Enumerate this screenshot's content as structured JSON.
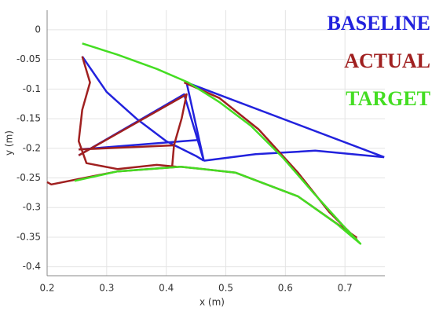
{
  "chart_data": {
    "type": "line",
    "xlabel": "x (m)",
    "ylabel": "y (m)",
    "xlim": [
      0.2,
      0.767
    ],
    "ylim": [
      -0.415,
      0.033
    ],
    "xticks": [
      0.2,
      0.3,
      0.4,
      0.5,
      0.6,
      0.7
    ],
    "yticks": [
      0,
      -0.05,
      -0.1,
      -0.15,
      -0.2,
      -0.25,
      -0.3,
      -0.35,
      -0.4
    ],
    "grid": true,
    "series": [
      {
        "name": "BASELINE",
        "color": "#2222dd",
        "x": [
          0.259,
          0.3,
          0.35,
          0.4,
          0.45,
          0.463,
          null,
          0.463,
          0.434,
          0.766,
          null,
          0.463,
          0.55,
          0.65,
          0.766,
          null,
          0.253,
          0.453,
          0.463,
          null,
          0.253,
          0.43,
          0.463
        ],
        "values": [
          -0.045,
          -0.105,
          -0.15,
          -0.188,
          -0.213,
          -0.221,
          null,
          -0.221,
          -0.089,
          -0.215,
          null,
          -0.221,
          -0.21,
          -0.204,
          -0.215,
          null,
          -0.202,
          -0.186,
          -0.221,
          null,
          -0.212,
          -0.109,
          -0.221
        ]
      },
      {
        "name": "ACTUAL",
        "color": "#a02020",
        "x": [
          0.259,
          0.272,
          0.259,
          0.253,
          0.266,
          0.318,
          0.384,
          0.417,
          null,
          0.253,
          0.434,
          0.426,
          0.413,
          0.41,
          null,
          0.253,
          0.413,
          null,
          0.43,
          0.489,
          0.555,
          0.621,
          0.674,
          0.72,
          null,
          0.2,
          0.207,
          0.318,
          0.424,
          0.516,
          0.621,
          0.72
        ],
        "values": [
          -0.045,
          -0.089,
          -0.135,
          -0.188,
          -0.225,
          -0.235,
          -0.228,
          -0.231,
          null,
          -0.212,
          -0.109,
          -0.149,
          -0.195,
          -0.229,
          null,
          -0.202,
          -0.195,
          null,
          -0.089,
          -0.115,
          -0.168,
          -0.241,
          -0.308,
          -0.354,
          null,
          -0.257,
          -0.261,
          -0.239,
          -0.231,
          -0.241,
          -0.281,
          -0.351
        ]
      },
      {
        "name": "TARGET",
        "color": "#44dd22",
        "x": [
          0.259,
          0.318,
          0.384,
          0.437,
          0.489,
          0.542,
          0.595,
          0.647,
          0.7,
          0.726,
          0.687,
          0.621,
          0.516,
          0.424,
          0.318,
          0.246
        ],
        "values": [
          -0.023,
          -0.042,
          -0.066,
          -0.089,
          -0.122,
          -0.162,
          -0.215,
          -0.275,
          -0.334,
          -0.361,
          -0.328,
          -0.281,
          -0.241,
          -0.231,
          -0.239,
          -0.255
        ]
      }
    ]
  }
}
